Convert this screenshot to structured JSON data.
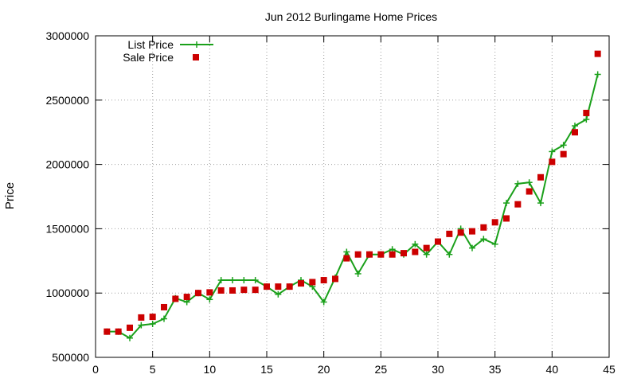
{
  "chart_data": {
    "type": "line",
    "title": "Jun 2012 Burlingame Home Prices",
    "xlabel": "",
    "ylabel": "Price",
    "xlim": [
      0,
      45
    ],
    "ylim": [
      500000,
      3000000
    ],
    "x_ticks": [
      0,
      5,
      10,
      15,
      20,
      25,
      30,
      35,
      40,
      45
    ],
    "y_ticks": [
      500000,
      1000000,
      1500000,
      2000000,
      2500000,
      3000000
    ],
    "x_tick_labels": [
      "0",
      "5",
      "10",
      "15",
      "20",
      "25",
      "30",
      "35",
      "40",
      "45"
    ],
    "y_tick_labels": [
      "500000",
      "1000000",
      "1500000",
      "2000000",
      "2500000",
      "3000000"
    ],
    "grid": true,
    "legend_position": "top-left",
    "series": [
      {
        "name": "List Price",
        "style": "linespoints",
        "marker": "plus",
        "color": "#1aa01a",
        "x": [
          1,
          2,
          3,
          4,
          5,
          6,
          7,
          8,
          9,
          10,
          11,
          12,
          13,
          14,
          15,
          16,
          17,
          18,
          19,
          20,
          21,
          22,
          23,
          24,
          25,
          26,
          27,
          28,
          29,
          30,
          31,
          32,
          33,
          34,
          35,
          36,
          37,
          38,
          39,
          40,
          41,
          42,
          43,
          44
        ],
        "values": [
          700000,
          700000,
          650000,
          750000,
          760000,
          800000,
          960000,
          930000,
          1000000,
          950000,
          1100000,
          1100000,
          1100000,
          1100000,
          1050000,
          990000,
          1050000,
          1100000,
          1050000,
          930000,
          1120000,
          1320000,
          1150000,
          1300000,
          1300000,
          1340000,
          1300000,
          1380000,
          1300000,
          1400000,
          1300000,
          1500000,
          1350000,
          1420000,
          1380000,
          1700000,
          1850000,
          1860000,
          1700000,
          2100000,
          2150000,
          2300000,
          2350000,
          2700000
        ]
      },
      {
        "name": "Sale Price",
        "style": "points",
        "marker": "square",
        "color": "#cc0000",
        "x": [
          1,
          2,
          3,
          4,
          5,
          6,
          7,
          8,
          9,
          10,
          11,
          12,
          13,
          14,
          15,
          16,
          17,
          18,
          19,
          20,
          21,
          22,
          23,
          24,
          25,
          26,
          27,
          28,
          29,
          30,
          31,
          32,
          33,
          34,
          35,
          36,
          37,
          38,
          39,
          40,
          41,
          42,
          43,
          44
        ],
        "values": [
          700000,
          700000,
          730000,
          810000,
          815000,
          890000,
          955000,
          970000,
          1000000,
          1005000,
          1020000,
          1020000,
          1025000,
          1025000,
          1050000,
          1050000,
          1050000,
          1075000,
          1085000,
          1100000,
          1110000,
          1270000,
          1300000,
          1300000,
          1300000,
          1300000,
          1310000,
          1320000,
          1350000,
          1400000,
          1460000,
          1470000,
          1480000,
          1510000,
          1550000,
          1580000,
          1690000,
          1790000,
          1900000,
          2020000,
          2080000,
          2250000,
          2400000,
          2860000
        ]
      }
    ]
  }
}
